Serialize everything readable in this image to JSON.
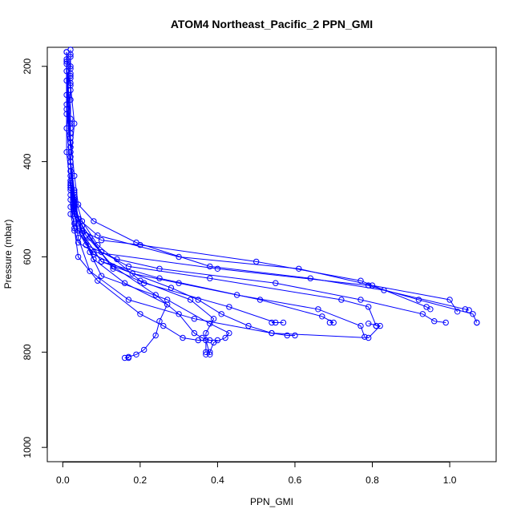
{
  "chart_data": {
    "type": "line",
    "title": "ATOM4 Northeast_Pacific_2 PPN_GMI",
    "xlabel": "PPN_GMI",
    "ylabel": "Pressure (mbar)",
    "xlim": [
      -0.04,
      1.12
    ],
    "ylim": [
      1030,
      160
    ],
    "x_ticks": [
      {
        "value": 0.0,
        "label": "0.0"
      },
      {
        "value": 0.2,
        "label": "0.2"
      },
      {
        "value": 0.4,
        "label": "0.4"
      },
      {
        "value": 0.6,
        "label": "0.6"
      },
      {
        "value": 0.8,
        "label": "0.8"
      },
      {
        "value": 1.0,
        "label": "1.0"
      }
    ],
    "y_ticks": [
      {
        "value": 200,
        "label": "200"
      },
      {
        "value": 400,
        "label": "400"
      },
      {
        "value": 600,
        "label": "600"
      },
      {
        "value": 800,
        "label": "800"
      },
      {
        "value": 1000,
        "label": "1000"
      }
    ],
    "grid": false,
    "colors": {
      "series": "#0000ff",
      "axes": "#000000"
    },
    "series": [
      {
        "x": [
          0.02,
          0.02,
          0.03,
          0.02,
          0.03,
          0.02,
          0.03,
          0.04,
          0.08,
          0.4,
          0.79,
          0.92,
          1.06,
          1.07,
          1.07
        ],
        "y": [
          165,
          240,
          320,
          400,
          460,
          510,
          545,
          570,
          590,
          625,
          660,
          690,
          720,
          738,
          738
        ]
      },
      {
        "x": [
          0.01,
          0.02,
          0.01,
          0.02,
          0.02,
          0.03,
          0.05,
          0.1,
          0.2,
          0.5,
          0.77,
          0.94,
          0.95
        ],
        "y": [
          170,
          250,
          330,
          410,
          470,
          515,
          545,
          565,
          575,
          610,
          650,
          705,
          710
        ]
      },
      {
        "x": [
          0.01,
          0.01,
          0.02,
          0.02,
          0.03,
          0.04,
          0.09,
          0.3,
          0.61,
          0.8,
          1.0,
          1.02
        ],
        "y": [
          170,
          260,
          340,
          420,
          480,
          520,
          555,
          600,
          625,
          660,
          690,
          715
        ]
      },
      {
        "x": [
          0.02,
          0.02,
          0.02,
          0.03,
          0.04,
          0.08,
          0.19,
          0.38,
          0.64,
          0.83,
          1.04,
          1.05
        ],
        "y": [
          175,
          270,
          350,
          430,
          490,
          525,
          570,
          620,
          645,
          670,
          710,
          712
        ]
      },
      {
        "x": [
          0.02,
          0.01,
          0.02,
          0.02,
          0.02,
          0.03,
          0.06,
          0.14,
          0.25,
          0.55,
          0.77,
          0.93,
          0.96,
          0.99
        ],
        "y": [
          180,
          280,
          360,
          440,
          495,
          530,
          575,
          605,
          625,
          655,
          690,
          720,
          735,
          738
        ]
      },
      {
        "x": [
          0.01,
          0.01,
          0.02,
          0.02,
          0.03,
          0.05,
          0.1,
          0.17,
          0.38,
          0.72,
          0.79,
          0.81,
          0.81
        ],
        "y": [
          185,
          290,
          370,
          450,
          500,
          535,
          590,
          620,
          645,
          690,
          705,
          745,
          745
        ]
      },
      {
        "x": [
          0.01,
          0.01,
          0.01,
          0.02,
          0.03,
          0.04,
          0.08,
          0.18,
          0.3,
          0.45,
          0.66,
          0.77,
          0.78
        ],
        "y": [
          190,
          300,
          380,
          455,
          505,
          545,
          595,
          635,
          655,
          680,
          710,
          745,
          768
        ]
      },
      {
        "x": [
          0.01,
          0.02,
          0.02,
          0.02,
          0.03,
          0.05,
          0.1,
          0.25,
          0.51,
          0.67,
          0.7,
          0.69
        ],
        "y": [
          195,
          310,
          390,
          460,
          510,
          550,
          610,
          645,
          690,
          725,
          738,
          738
        ]
      },
      {
        "x": [
          0.02,
          0.02,
          0.02,
          0.03,
          0.04,
          0.07,
          0.13,
          0.21,
          0.43,
          0.55,
          0.57,
          0.54
        ],
        "y": [
          200,
          320,
          400,
          465,
          520,
          560,
          625,
          655,
          705,
          738,
          738,
          738
        ]
      },
      {
        "x": [
          0.02,
          0.02,
          0.02,
          0.03,
          0.05,
          0.09,
          0.2,
          0.33,
          0.39,
          0.37,
          0.37
        ],
        "y": [
          205,
          330,
          410,
          470,
          525,
          575,
          650,
          690,
          730,
          760,
          800
        ]
      },
      {
        "x": [
          0.01,
          0.02,
          0.02,
          0.03,
          0.04,
          0.07,
          0.1,
          0.27,
          0.38,
          0.43,
          0.42,
          0.39,
          0.38,
          0.37
        ],
        "y": [
          210,
          340,
          420,
          475,
          530,
          590,
          640,
          690,
          740,
          760,
          770,
          780,
          800,
          805
        ]
      },
      {
        "x": [
          0.02,
          0.02,
          0.02,
          0.02,
          0.03,
          0.04,
          0.09,
          0.2,
          0.26,
          0.31,
          0.35,
          0.37,
          0.38
        ],
        "y": [
          215,
          350,
          430,
          480,
          540,
          600,
          650,
          720,
          745,
          770,
          775,
          775,
          805
        ]
      },
      {
        "x": [
          0.02,
          0.02,
          0.02,
          0.03,
          0.05,
          0.08,
          0.16,
          0.27,
          0.25,
          0.24,
          0.21,
          0.19,
          0.17,
          0.17,
          0.16
        ],
        "y": [
          220,
          360,
          440,
          485,
          545,
          605,
          655,
          700,
          735,
          765,
          795,
          805,
          810,
          812,
          812
        ]
      },
      {
        "x": [
          0.02,
          0.02,
          0.02,
          0.03,
          0.05,
          0.1,
          0.28,
          0.35,
          0.41,
          0.48,
          0.54,
          0.58,
          0.6
        ],
        "y": [
          225,
          370,
          445,
          490,
          550,
          610,
          665,
          690,
          720,
          745,
          760,
          765,
          765
        ]
      },
      {
        "x": [
          0.01,
          0.02,
          0.02,
          0.03,
          0.06,
          0.13,
          0.24,
          0.3,
          0.34,
          0.36,
          0.38,
          0.4
        ],
        "y": [
          230,
          380,
          450,
          495,
          555,
          620,
          680,
          720,
          760,
          770,
          775,
          775
        ]
      },
      {
        "x": [
          0.02,
          0.02,
          0.02,
          0.03,
          0.04,
          0.07,
          0.17,
          0.34,
          0.54,
          0.79,
          0.82,
          0.79
        ],
        "y": [
          235,
          390,
          455,
          500,
          560,
          630,
          690,
          730,
          760,
          770,
          745,
          740
        ]
      }
    ]
  }
}
